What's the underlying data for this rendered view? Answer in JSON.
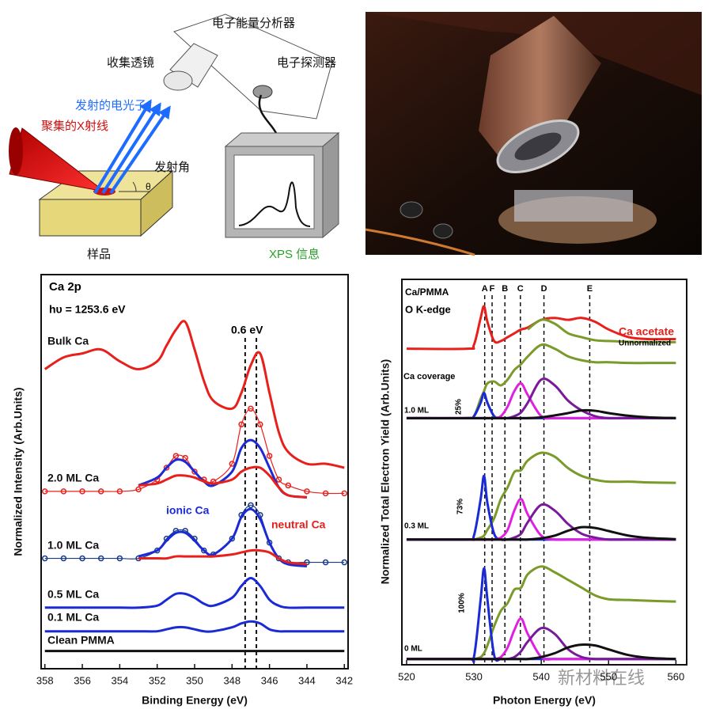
{
  "diagram": {
    "analyzer": "电子能量分析器",
    "lens": "收集透镜",
    "detector": "电子探测器",
    "electrons": "发射的电光子",
    "xray": "聚集的X射线",
    "angle": "发射角",
    "theta": "θ",
    "sample": "样品",
    "xps": "XPS 信息"
  },
  "watermark": "新材料在线",
  "chart_data": [
    {
      "type": "line",
      "xlabel": "Binding Energy (eV)",
      "ylabel": "Normalized Intensity (Arb.Units)",
      "annotations": [
        "Ca 2p",
        "hυ = 1253.6 eV",
        "0.6 eV"
      ],
      "xlim": [
        358.2,
        341.8
      ],
      "ylim": [
        0,
        100
      ],
      "xticks": [
        358,
        356,
        354,
        352,
        350,
        348,
        346,
        344,
        342
      ],
      "markers": [
        347.3,
        346.7
      ],
      "x": [
        358,
        357,
        356,
        355,
        354,
        353,
        352,
        351.5,
        351,
        350.5,
        350,
        349.5,
        349,
        348,
        347.5,
        347,
        346.5,
        346,
        345.5,
        345,
        344,
        343,
        342
      ],
      "series": [
        {
          "name": "Bulk Ca",
          "color": "#e8201c",
          "values": [
            76,
            79,
            80,
            81,
            78,
            76,
            78,
            82,
            86,
            88,
            81,
            73,
            68,
            66,
            70,
            77,
            80,
            70,
            60,
            55,
            52,
            52,
            51
          ]
        },
        {
          "name": "2.0 ML Ca",
          "color": "#e8201c",
          "style": "markers",
          "values": [
            45,
            45,
            45,
            45,
            45,
            45.5,
            48,
            51,
            54,
            53.5,
            50,
            48,
            47.5,
            52,
            62,
            66,
            62,
            54,
            48,
            46.5,
            45,
            44.5,
            44.5
          ]
        },
        {
          "color": "#1a2bd6",
          "values": [
            null,
            null,
            null,
            null,
            null,
            46.5,
            48.5,
            51,
            53,
            52.5,
            50,
            47.5,
            46.5,
            50,
            56,
            58,
            56,
            51,
            46,
            44,
            43.5,
            null,
            null
          ]
        },
        {
          "color": "#e8201c",
          "values": [
            null,
            null,
            null,
            null,
            null,
            46.5,
            47,
            48,
            49,
            49,
            48.5,
            47.5,
            47,
            48,
            50,
            51,
            51,
            49,
            46,
            44,
            43.5,
            null,
            null
          ]
        },
        {
          "name": "1.0 ML Ca",
          "color": "#1a3a8a",
          "style": "markers",
          "values": [
            28,
            28,
            28,
            28,
            28,
            28,
            30,
            33,
            35,
            35,
            33,
            30,
            29,
            33,
            39,
            41.5,
            39,
            32,
            28,
            27,
            27,
            27,
            27
          ]
        },
        {
          "name": "ionic Ca",
          "color": "#1a2bd6",
          "values": [
            null,
            null,
            null,
            null,
            null,
            28.5,
            30,
            32.5,
            34.5,
            34.5,
            32.5,
            30,
            29,
            33,
            38.5,
            40.5,
            38,
            32,
            28,
            26.5,
            26,
            null,
            null
          ]
        },
        {
          "name": "neutral Ca",
          "color": "#e8201c",
          "values": [
            null,
            null,
            null,
            null,
            null,
            28,
            28,
            28,
            28.5,
            28.5,
            28.5,
            28.5,
            28.5,
            29,
            29.5,
            30,
            30,
            29.5,
            28,
            27,
            26.5,
            null,
            null
          ]
        },
        {
          "name": "0.5 ML Ca",
          "color": "#1a2bd6",
          "values": [
            15.5,
            15.5,
            15.5,
            15.5,
            15.5,
            15.5,
            16,
            17.5,
            19,
            19,
            18,
            16.5,
            16,
            18,
            21,
            23,
            21,
            17.5,
            16,
            15.5,
            15.5,
            15.5,
            15.5
          ]
        },
        {
          "name": "0.1 ML Ca",
          "color": "#1a2bd6",
          "values": [
            9.5,
            9.5,
            9.5,
            9.5,
            9.5,
            9.5,
            9.5,
            10,
            10.5,
            10.5,
            10,
            9.5,
            9.5,
            10.5,
            11.5,
            12,
            11.5,
            10,
            9.5,
            9.5,
            9.5,
            9.5,
            9.5
          ]
        },
        {
          "name": "Clean PMMA",
          "color": "#111111",
          "values": [
            4.5,
            4.5,
            4.5,
            4.5,
            4.5,
            4.5,
            4.5,
            4.5,
            4.5,
            4.5,
            4.5,
            4.5,
            4.5,
            4.5,
            4.5,
            4.5,
            4.5,
            4.5,
            4.5,
            4.5,
            4.5,
            4.5,
            4.5
          ]
        }
      ]
    },
    {
      "type": "line",
      "xlabel": "Photon Energy (eV)",
      "ylabel": "Normalized Total Electron Yield (Arb.Units)",
      "annotations": [
        "Ca/PMMA",
        "O K-edge",
        "Ca coverage",
        "25%",
        "73%",
        "100%",
        "1.0 ML",
        "0.3 ML",
        "0 ML",
        "Unnormalized"
      ],
      "xlim": [
        519.3,
        561.6
      ],
      "ylim": [
        0,
        100
      ],
      "xticks": [
        520,
        530,
        540,
        550,
        560
      ],
      "peaks": [
        {
          "label": "A",
          "value": 531.6
        },
        {
          "label": "F",
          "value": 532.7
        },
        {
          "label": "B",
          "value": 534.6
        },
        {
          "label": "C",
          "value": 536.9
        },
        {
          "label": "D",
          "value": 540.4
        },
        {
          "label": "E",
          "value": 547.2
        }
      ],
      "x": [
        520,
        529,
        530,
        531,
        531.5,
        532,
        533,
        534,
        535,
        536,
        537,
        538,
        540,
        542,
        544,
        546,
        548,
        550,
        553,
        556,
        560
      ],
      "series": [
        {
          "name": "Ca acetate",
          "color": "#e8201c",
          "values": [
            82,
            82,
            83,
            90,
            93,
            89,
            84,
            84,
            85,
            86,
            87,
            87.5,
            89.5,
            90,
            89.5,
            90,
            89,
            87,
            85,
            84.5,
            84.5
          ]
        },
        {
          "color": "#7a9a2a",
          "values": [
            null,
            null,
            null,
            null,
            null,
            null,
            null,
            null,
            null,
            null,
            null,
            87,
            89.5,
            88.5,
            86,
            85,
            84.2,
            84,
            83.8,
            83.7,
            83.7
          ]
        },
        {
          "color": "#7a9a2a",
          "values": [
            64,
            64,
            64.5,
            69,
            71,
            73,
            73.5,
            72.5,
            74,
            76.5,
            78,
            80,
            83,
            82,
            80,
            79,
            78.5,
            78.5,
            78.3,
            78.3,
            78.3
          ]
        },
        {
          "color": "#1a2bd6",
          "values": [
            64,
            64,
            64.5,
            68,
            70.5,
            68,
            64.5,
            64,
            64,
            64,
            64,
            64,
            64,
            64,
            64,
            64,
            64,
            64,
            64,
            64,
            64
          ]
        },
        {
          "color": "#e020e0",
          "values": [
            64,
            64,
            64,
            64,
            64,
            64,
            64,
            64.5,
            67,
            71,
            73,
            70,
            64.5,
            64,
            64,
            64,
            64,
            64,
            64,
            64,
            64
          ]
        },
        {
          "color": "#7a1a9a",
          "values": [
            64,
            64,
            64,
            64,
            64,
            64,
            64,
            64,
            64,
            64.5,
            65.5,
            68,
            74,
            72.5,
            68.5,
            66,
            64.5,
            64,
            64,
            64,
            64
          ]
        },
        {
          "color": "#111111",
          "values": [
            64,
            64,
            64,
            64,
            64,
            64,
            64,
            64,
            64,
            64,
            64,
            64,
            64.2,
            64.7,
            65.3,
            66,
            65.9,
            65.3,
            64.6,
            64.2,
            64
          ]
        },
        {
          "color": "#7a9a2a",
          "values": [
            32.5,
            32.5,
            32.5,
            33,
            33.5,
            35,
            38,
            43,
            46,
            50,
            50.5,
            53,
            55,
            54,
            51,
            49,
            48,
            47.5,
            47.5,
            47.3,
            47.2
          ]
        },
        {
          "color": "#1a2bd6",
          "values": [
            32.5,
            32.5,
            33.5,
            43,
            49,
            42,
            34,
            32.5,
            32.5,
            32.5,
            32.5,
            32.5,
            32.5,
            32.5,
            32.5,
            32.5,
            32.5,
            32.5,
            32.5,
            32.5,
            32.5
          ]
        },
        {
          "color": "#e020e0",
          "values": [
            32.5,
            32.5,
            32.5,
            32.5,
            32.5,
            32.5,
            32.5,
            33,
            35,
            40,
            43,
            39,
            33.5,
            32.5,
            32.5,
            32.5,
            32.5,
            32.5,
            32.5,
            32.5,
            32.5
          ]
        },
        {
          "color": "#7a1a9a",
          "values": [
            32.5,
            32.5,
            32.5,
            32.5,
            32.5,
            32.5,
            32.5,
            32.5,
            32.5,
            33,
            34,
            37,
            41.5,
            40,
            36.5,
            34,
            33,
            32.5,
            32.5,
            32.5,
            32.5
          ]
        },
        {
          "color": "#111111",
          "values": [
            32.5,
            32.5,
            32.5,
            32.5,
            32.5,
            32.5,
            32.5,
            32.5,
            32.5,
            32.5,
            32.5,
            32.5,
            32.8,
            33.5,
            34.8,
            35.7,
            35.5,
            34.7,
            33.5,
            32.9,
            32.6
          ]
        },
        {
          "color": "#7a9a2a",
          "values": [
            1.5,
            1.5,
            1.5,
            2,
            3,
            5,
            10,
            14,
            16,
            19.5,
            20,
            23.5,
            25.5,
            24,
            22,
            20,
            18,
            17,
            16.8,
            16.6,
            16.4
          ]
        },
        {
          "color": "#1a2bd6",
          "values": [
            1.5,
            1.5,
            2,
            17,
            25,
            17,
            2.5,
            1.5,
            1.5,
            1.5,
            1.5,
            1.5,
            1.5,
            1.5,
            1.5,
            1.5,
            1.5,
            1.5,
            1.5,
            1.5,
            1.5
          ]
        },
        {
          "color": "#e020e0",
          "values": [
            1.5,
            1.5,
            1.5,
            1.5,
            1.5,
            1.5,
            1.5,
            2,
            4.5,
            9,
            12,
            8,
            2,
            1.5,
            1.5,
            1.5,
            1.5,
            1.5,
            1.5,
            1.5,
            1.5
          ]
        },
        {
          "color": "#7a1a9a",
          "values": [
            1.5,
            1.5,
            1.5,
            1.5,
            1.5,
            1.5,
            1.5,
            1.5,
            1.5,
            2,
            3.5,
            6,
            9.5,
            8,
            4,
            2,
            1.5,
            1.5,
            1.5,
            1.5,
            1.5
          ]
        },
        {
          "color": "#111111",
          "values": [
            1.5,
            1.5,
            1.5,
            1.5,
            1.5,
            1.5,
            1.5,
            1.5,
            1.5,
            1.5,
            1.5,
            1.5,
            2,
            3,
            4.5,
            5.2,
            5,
            4,
            2.5,
            1.8,
            1.5
          ]
        }
      ]
    }
  ]
}
